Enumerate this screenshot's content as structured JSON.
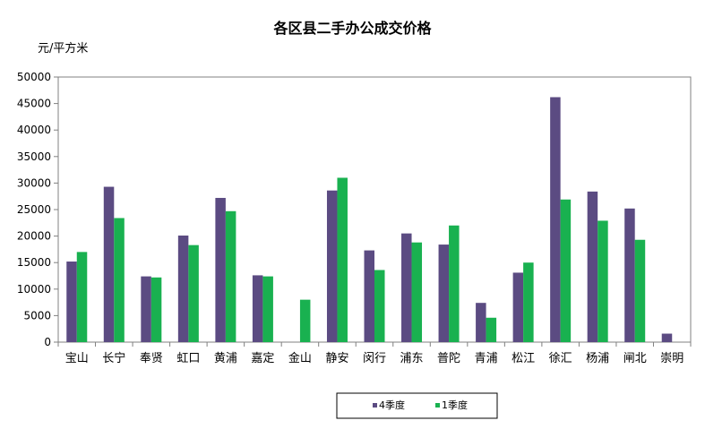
{
  "chart_data": {
    "type": "bar",
    "title": "各区县二手办公成交价格",
    "ylabel": "元/平方米",
    "xlabel": "",
    "ylim": [
      0,
      50000
    ],
    "yticks": [
      "50000",
      "45000",
      "40000",
      "35000",
      "30000",
      "25000",
      "20000",
      "15000",
      "10000",
      "5000",
      "0"
    ],
    "ytick_values": [
      50000,
      45000,
      40000,
      35000,
      30000,
      25000,
      20000,
      15000,
      10000,
      5000,
      0
    ],
    "categories": [
      "宝山",
      "长宁",
      "奉贤",
      "虹口",
      "黄浦",
      "嘉定",
      "金山",
      "静安",
      "闵行",
      "浦东",
      "普陀",
      "青浦",
      "松江",
      "徐汇",
      "杨浦",
      "闸北",
      "崇明"
    ],
    "series": [
      {
        "name": "4季度",
        "color": "#5b4b82",
        "values": [
          15200,
          29300,
          12400,
          20100,
          27200,
          12600,
          0,
          28600,
          17300,
          20500,
          18400,
          7400,
          13100,
          46200,
          28400,
          25200,
          1600
        ]
      },
      {
        "name": "1季度",
        "color": "#19b150",
        "values": [
          17000,
          23400,
          12200,
          18300,
          24700,
          12400,
          8000,
          31000,
          13600,
          18800,
          22000,
          4600,
          15000,
          26900,
          22900,
          19300,
          0
        ]
      }
    ],
    "legend_position": "bottom",
    "grid": false
  }
}
